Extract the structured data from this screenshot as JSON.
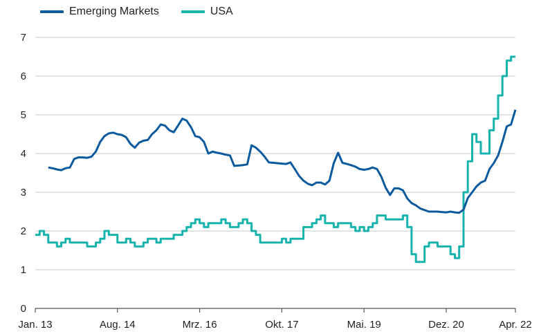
{
  "chart_data": {
    "type": "line",
    "title": "",
    "xlabel": "",
    "ylabel": "",
    "frequency": "monthly",
    "x_start": "2013-01",
    "x_end": "2022-04",
    "x_tick_labels": [
      "Jan. 13",
      "Aug. 14",
      "Mrz. 16",
      "Okt. 17",
      "Mai. 19",
      "Dez. 20",
      "Apr. 22"
    ],
    "x_tick_months": [
      "2013-01",
      "2014-08",
      "2016-03",
      "2017-10",
      "2019-05",
      "2020-12",
      "2022-04"
    ],
    "ylim": [
      0,
      7
    ],
    "y_ticks": [
      0,
      1,
      2,
      3,
      4,
      5,
      6,
      7
    ],
    "grid": "horizontal",
    "legend_position": "top-left",
    "series": [
      {
        "name": "Emerging Markets",
        "color": "#0b5a9e",
        "style": "line",
        "values": [
          null,
          null,
          null,
          3.64,
          3.62,
          3.59,
          3.57,
          3.62,
          3.64,
          3.86,
          3.9,
          3.9,
          3.89,
          3.92,
          4.05,
          4.3,
          4.45,
          4.52,
          4.54,
          4.5,
          4.48,
          4.42,
          4.25,
          4.15,
          4.28,
          4.33,
          4.35,
          4.5,
          4.6,
          4.75,
          4.72,
          4.6,
          4.55,
          4.72,
          4.9,
          4.85,
          4.68,
          4.45,
          4.42,
          4.3,
          4.0,
          4.05,
          4.02,
          4.0,
          3.97,
          3.95,
          3.68,
          3.69,
          3.7,
          3.72,
          4.21,
          4.15,
          4.05,
          3.92,
          3.77,
          3.76,
          3.75,
          3.74,
          3.73,
          3.77,
          3.6,
          3.42,
          3.3,
          3.22,
          3.18,
          3.25,
          3.25,
          3.2,
          3.3,
          3.75,
          4.02,
          3.76,
          3.73,
          3.7,
          3.66,
          3.6,
          3.58,
          3.6,
          3.64,
          3.6,
          3.4,
          3.12,
          2.93,
          3.1,
          3.1,
          3.05,
          2.84,
          2.72,
          2.66,
          2.58,
          2.54,
          2.5,
          2.5,
          2.5,
          2.49,
          2.48,
          2.5,
          2.48,
          2.47,
          2.55,
          2.85,
          3.0,
          3.15,
          3.25,
          3.3,
          3.6,
          3.75,
          3.95,
          4.3,
          4.7,
          4.75,
          5.13
        ]
      },
      {
        "name": "USA",
        "color": "#17b3ad",
        "style": "step",
        "values": [
          1.9,
          1.9,
          2.0,
          1.9,
          1.7,
          1.7,
          1.6,
          1.7,
          1.8,
          1.7,
          1.7,
          1.7,
          1.7,
          1.6,
          1.6,
          1.7,
          1.8,
          2.0,
          1.9,
          1.9,
          1.7,
          1.7,
          1.8,
          1.7,
          1.6,
          1.6,
          1.7,
          1.8,
          1.8,
          1.7,
          1.8,
          1.8,
          1.8,
          1.9,
          1.9,
          2.0,
          2.1,
          2.2,
          2.3,
          2.2,
          2.1,
          2.2,
          2.2,
          2.2,
          2.3,
          2.2,
          2.1,
          2.1,
          2.2,
          2.3,
          2.2,
          2.0,
          1.9,
          1.7,
          1.7,
          1.7,
          1.7,
          1.7,
          1.8,
          1.7,
          1.8,
          1.8,
          1.8,
          2.1,
          2.1,
          2.2,
          2.3,
          2.4,
          2.2,
          2.2,
          2.1,
          2.2,
          2.2,
          2.2,
          2.1,
          2.0,
          2.1,
          2.0,
          2.1,
          2.2,
          2.4,
          2.4,
          2.3,
          2.3,
          2.3,
          2.3,
          2.4,
          2.1,
          1.4,
          1.2,
          1.2,
          1.6,
          1.7,
          1.7,
          1.6,
          1.6,
          1.6,
          1.4,
          1.3,
          1.6,
          3.0,
          3.8,
          4.5,
          4.3,
          4.0,
          4.0,
          4.6,
          4.9,
          5.5,
          6.0,
          6.4,
          6.5
        ]
      }
    ]
  }
}
